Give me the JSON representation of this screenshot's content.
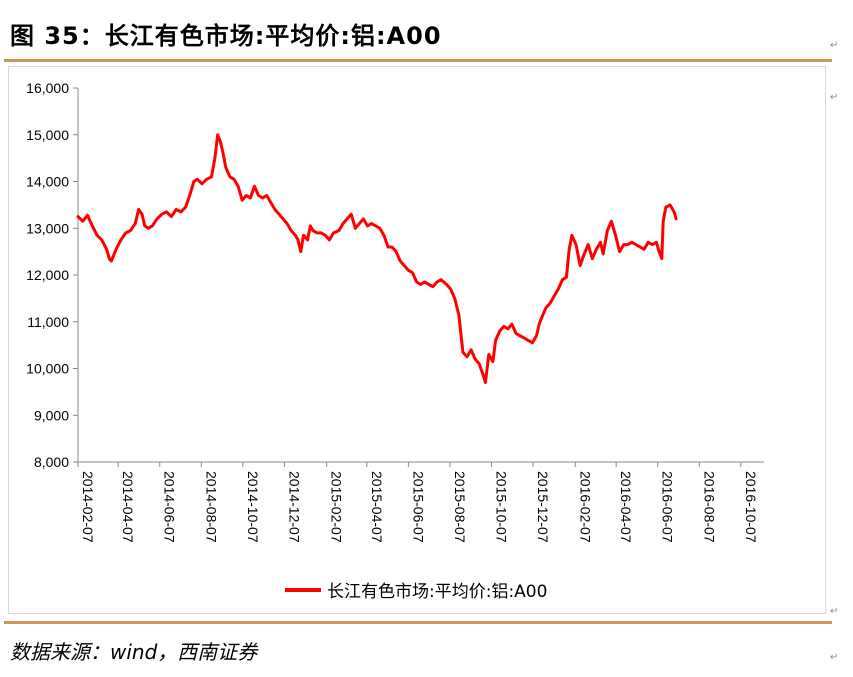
{
  "title": "图 35：长江有色市场:平均价:铝:A00",
  "source": "数据来源：wind，西南证券",
  "colors": {
    "series": "#ff0000",
    "rule": "#c9975a",
    "axis": "#888888"
  },
  "chart_data": {
    "type": "line",
    "ylim": [
      8000,
      16000
    ],
    "yticks": [
      "8,000",
      "9,000",
      "10,000",
      "11,000",
      "12,000",
      "13,000",
      "14,000",
      "15,000",
      "16,000"
    ],
    "ytick_values": [
      8000,
      9000,
      10000,
      11000,
      12000,
      13000,
      14000,
      15000,
      16000
    ],
    "xlim": [
      "2014-02-07",
      "2016-11-10"
    ],
    "xticks": [
      "2014-02-07",
      "2014-04-07",
      "2014-06-07",
      "2014-08-07",
      "2014-10-07",
      "2014-12-07",
      "2015-02-07",
      "2015-04-07",
      "2015-06-07",
      "2015-08-07",
      "2015-10-07",
      "2015-12-07",
      "2016-02-07",
      "2016-04-07",
      "2016-06-07",
      "2016-08-07",
      "2016-10-07"
    ],
    "legend": "bottom",
    "series": [
      {
        "name": "长江有色市场:平均价:铝:A00",
        "color": "#ff0000",
        "points": [
          [
            "2014-02-07",
            13250
          ],
          [
            "2014-02-14",
            13150
          ],
          [
            "2014-02-21",
            13280
          ],
          [
            "2014-02-28",
            13050
          ],
          [
            "2014-03-07",
            12850
          ],
          [
            "2014-03-14",
            12750
          ],
          [
            "2014-03-21",
            12550
          ],
          [
            "2014-03-25",
            12350
          ],
          [
            "2014-03-28",
            12300
          ],
          [
            "2014-04-04",
            12550
          ],
          [
            "2014-04-11",
            12750
          ],
          [
            "2014-04-18",
            12900
          ],
          [
            "2014-04-25",
            12950
          ],
          [
            "2014-05-02",
            13100
          ],
          [
            "2014-05-07",
            13400
          ],
          [
            "2014-05-12",
            13300
          ],
          [
            "2014-05-16",
            13050
          ],
          [
            "2014-05-21",
            13000
          ],
          [
            "2014-05-27",
            13050
          ],
          [
            "2014-06-03",
            13200
          ],
          [
            "2014-06-10",
            13300
          ],
          [
            "2014-06-17",
            13350
          ],
          [
            "2014-06-24",
            13250
          ],
          [
            "2014-07-01",
            13400
          ],
          [
            "2014-07-08",
            13350
          ],
          [
            "2014-07-15",
            13450
          ],
          [
            "2014-07-22",
            13750
          ],
          [
            "2014-07-27",
            14000
          ],
          [
            "2014-08-01",
            14050
          ],
          [
            "2014-08-08",
            13950
          ],
          [
            "2014-08-15",
            14050
          ],
          [
            "2014-08-22",
            14100
          ],
          [
            "2014-08-27",
            14500
          ],
          [
            "2014-08-31",
            15000
          ],
          [
            "2014-09-04",
            14850
          ],
          [
            "2014-09-08",
            14600
          ],
          [
            "2014-09-12",
            14300
          ],
          [
            "2014-09-18",
            14100
          ],
          [
            "2014-09-24",
            14050
          ],
          [
            "2014-09-30",
            13900
          ],
          [
            "2014-10-06",
            13600
          ],
          [
            "2014-10-12",
            13700
          ],
          [
            "2014-10-18",
            13650
          ],
          [
            "2014-10-24",
            13900
          ],
          [
            "2014-10-30",
            13700
          ],
          [
            "2014-11-05",
            13650
          ],
          [
            "2014-11-11",
            13700
          ],
          [
            "2014-11-17",
            13550
          ],
          [
            "2014-11-23",
            13400
          ],
          [
            "2014-11-29",
            13300
          ],
          [
            "2014-12-05",
            13200
          ],
          [
            "2014-12-11",
            13100
          ],
          [
            "2014-12-17",
            12950
          ],
          [
            "2014-12-23",
            12850
          ],
          [
            "2014-12-27",
            12750
          ],
          [
            "2014-12-31",
            12500
          ],
          [
            "2015-01-04",
            12850
          ],
          [
            "2015-01-10",
            12750
          ],
          [
            "2015-01-14",
            13050
          ],
          [
            "2015-01-18",
            12950
          ],
          [
            "2015-01-24",
            12900
          ],
          [
            "2015-01-30",
            12900
          ],
          [
            "2015-02-05",
            12850
          ],
          [
            "2015-02-11",
            12750
          ],
          [
            "2015-02-17",
            12900
          ],
          [
            "2015-02-25",
            12950
          ],
          [
            "2015-03-03",
            13100
          ],
          [
            "2015-03-09",
            13200
          ],
          [
            "2015-03-15",
            13300
          ],
          [
            "2015-03-21",
            13000
          ],
          [
            "2015-03-27",
            13100
          ],
          [
            "2015-04-02",
            13200
          ],
          [
            "2015-04-08",
            13050
          ],
          [
            "2015-04-14",
            13100
          ],
          [
            "2015-04-20",
            13050
          ],
          [
            "2015-04-26",
            13000
          ],
          [
            "2015-05-02",
            12850
          ],
          [
            "2015-05-08",
            12600
          ],
          [
            "2015-05-14",
            12600
          ],
          [
            "2015-05-20",
            12500
          ],
          [
            "2015-05-26",
            12300
          ],
          [
            "2015-06-01",
            12200
          ],
          [
            "2015-06-07",
            12100
          ],
          [
            "2015-06-13",
            12050
          ],
          [
            "2015-06-19",
            11850
          ],
          [
            "2015-06-25",
            11800
          ],
          [
            "2015-07-01",
            11850
          ],
          [
            "2015-07-07",
            11800
          ],
          [
            "2015-07-13",
            11750
          ],
          [
            "2015-07-19",
            11850
          ],
          [
            "2015-07-25",
            11900
          ],
          [
            "2015-08-02",
            11800
          ],
          [
            "2015-08-08",
            11700
          ],
          [
            "2015-08-14",
            11500
          ],
          [
            "2015-08-20",
            11150
          ],
          [
            "2015-08-26",
            10350
          ],
          [
            "2015-09-01",
            10250
          ],
          [
            "2015-09-07",
            10400
          ],
          [
            "2015-09-13",
            10200
          ],
          [
            "2015-09-19",
            10100
          ],
          [
            "2015-09-25",
            9850
          ],
          [
            "2015-09-28",
            9700
          ],
          [
            "2015-10-03",
            10300
          ],
          [
            "2015-10-09",
            10150
          ],
          [
            "2015-10-13",
            10600
          ],
          [
            "2015-10-19",
            10800
          ],
          [
            "2015-10-25",
            10900
          ],
          [
            "2015-10-31",
            10850
          ],
          [
            "2015-11-06",
            10950
          ],
          [
            "2015-11-12",
            10750
          ],
          [
            "2015-11-18",
            10700
          ],
          [
            "2015-11-24",
            10650
          ],
          [
            "2015-11-30",
            10600
          ],
          [
            "2015-12-06",
            10550
          ],
          [
            "2015-12-12",
            10700
          ],
          [
            "2015-12-16",
            10950
          ],
          [
            "2015-12-20",
            11100
          ],
          [
            "2015-12-26",
            11300
          ],
          [
            "2016-01-01",
            11400
          ],
          [
            "2016-01-07",
            11550
          ],
          [
            "2016-01-13",
            11700
          ],
          [
            "2016-01-19",
            11900
          ],
          [
            "2016-01-25",
            11950
          ],
          [
            "2016-01-29",
            12550
          ],
          [
            "2016-02-02",
            12850
          ],
          [
            "2016-02-08",
            12650
          ],
          [
            "2016-02-14",
            12200
          ],
          [
            "2016-02-20",
            12450
          ],
          [
            "2016-02-26",
            12650
          ],
          [
            "2016-03-03",
            12350
          ],
          [
            "2016-03-09",
            12550
          ],
          [
            "2016-03-15",
            12700
          ],
          [
            "2016-03-19",
            12450
          ],
          [
            "2016-03-25",
            12950
          ],
          [
            "2016-03-31",
            13150
          ],
          [
            "2016-04-06",
            12850
          ],
          [
            "2016-04-12",
            12500
          ],
          [
            "2016-04-18",
            12650
          ],
          [
            "2016-04-24",
            12650
          ],
          [
            "2016-04-30",
            12700
          ],
          [
            "2016-05-06",
            12650
          ],
          [
            "2016-05-12",
            12600
          ],
          [
            "2016-05-18",
            12550
          ],
          [
            "2016-05-24",
            12700
          ],
          [
            "2016-05-30",
            12650
          ],
          [
            "2016-06-05",
            12700
          ],
          [
            "2016-06-09",
            12500
          ],
          [
            "2016-06-13",
            12350
          ],
          [
            "2016-06-15",
            13150
          ],
          [
            "2016-06-19",
            13450
          ],
          [
            "2016-06-25",
            13500
          ],
          [
            "2016-07-01",
            13350
          ],
          [
            "2016-07-04",
            13200
          ]
        ]
      }
    ]
  }
}
